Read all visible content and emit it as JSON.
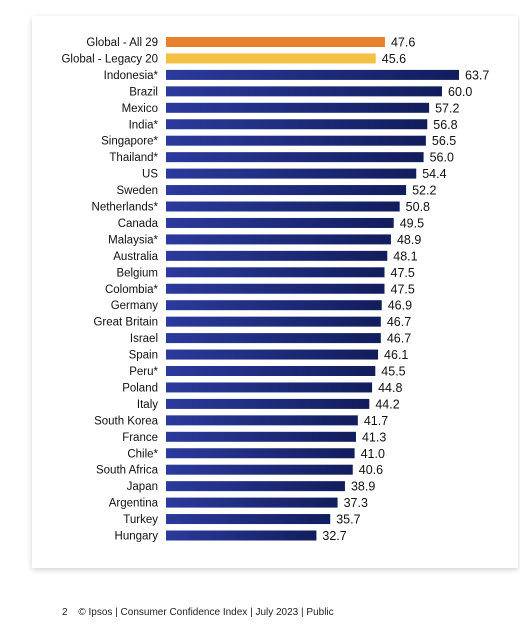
{
  "chart_data": {
    "type": "bar",
    "orientation": "horizontal",
    "categories": [
      "Global - All 29",
      "Global - Legacy 20",
      "Indonesia*",
      "Brazil",
      "Mexico",
      "India*",
      "Singapore*",
      "Thailand*",
      "US",
      "Sweden",
      "Netherlands*",
      "Canada",
      "Malaysia*",
      "Australia",
      "Belgium",
      "Colombia*",
      "Germany",
      "Great Britain",
      "Israel",
      "Spain",
      "Peru*",
      "Poland",
      "Italy",
      "South Korea",
      "France",
      "Chile*",
      "South Africa",
      "Japan",
      "Argentina",
      "Turkey",
      "Hungary"
    ],
    "values": [
      47.6,
      45.6,
      63.7,
      60.0,
      57.2,
      56.8,
      56.5,
      56.0,
      54.4,
      52.2,
      50.8,
      49.5,
      48.9,
      48.1,
      47.5,
      47.5,
      46.9,
      46.7,
      46.7,
      46.1,
      45.5,
      44.8,
      44.2,
      41.7,
      41.3,
      41.0,
      40.6,
      38.9,
      37.3,
      35.7,
      32.7
    ],
    "value_labels": [
      "47.6",
      "45.6",
      "63.7",
      "60.0",
      "57.2",
      "56.8",
      "56.5",
      "56.0",
      "54.4",
      "52.2",
      "50.8",
      "49.5",
      "48.9",
      "48.1",
      "47.5",
      "47.5",
      "46.9",
      "46.7",
      "46.7",
      "46.1",
      "45.5",
      "44.8",
      "44.2",
      "41.7",
      "41.3",
      "41.0",
      "40.6",
      "38.9",
      "37.3",
      "35.7",
      "32.7"
    ],
    "xlim": [
      0,
      65
    ],
    "grid": false,
    "colors": {
      "Global - All 29": "#e8812e",
      "Global - Legacy 20": "#f2c043",
      "default_gradient": [
        "#2b3a9c",
        "#121d5c"
      ]
    }
  },
  "footer": {
    "page_number": "2",
    "text": "© Ipsos | Consumer Confidence Index | July 2023 | Public"
  }
}
